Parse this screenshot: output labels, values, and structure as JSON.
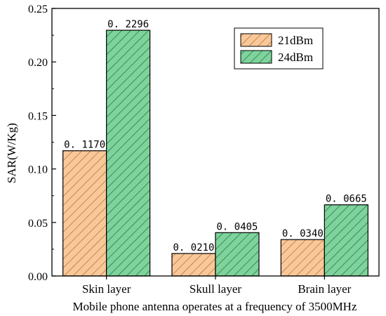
{
  "chart_data": {
    "type": "bar",
    "title": "",
    "xlabel": "Mobile phone antenna operates at a frequency of 3500MHz",
    "ylabel": "SAR(W/Kg)",
    "categories": [
      "Skin layer",
      "Skull layer",
      "Brain layer"
    ],
    "series": [
      {
        "name": "21dBm",
        "values": [
          0.117,
          0.021,
          0.034
        ],
        "labels": [
          "0. 1170",
          "0. 0210",
          "0. 0340"
        ],
        "color": "#f9c89a",
        "hatch": "#b46a2a"
      },
      {
        "name": "24dBm",
        "values": [
          0.2296,
          0.0405,
          0.0665
        ],
        "labels": [
          "0. 2296",
          "0. 0405",
          "0. 0665"
        ],
        "color": "#7ed39c",
        "hatch": "#1f6b3c"
      }
    ],
    "ylim": [
      0,
      0.25
    ],
    "yticks": [
      0.0,
      0.05,
      0.1,
      0.15,
      0.2,
      0.25
    ],
    "ytick_labels": [
      "0.00",
      "0.05",
      "0.10",
      "0.15",
      "0.20",
      "0.25"
    ],
    "legend_position": "top-right",
    "grid": false
  }
}
